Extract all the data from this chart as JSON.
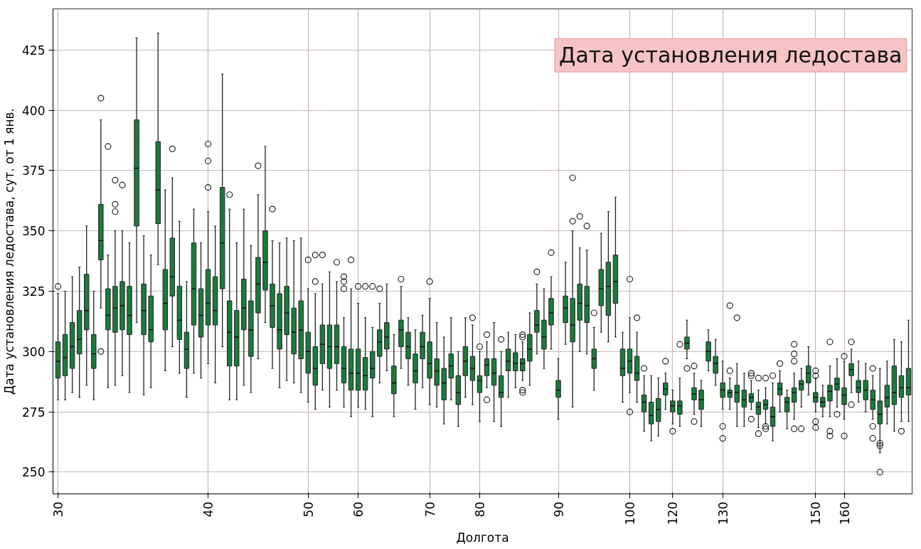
{
  "chart_data": {
    "type": "box",
    "title": "Дата установления ледостава",
    "xlabel": "Долгота",
    "ylabel": "Дата установления ледостава, сут. от 1 янв.",
    "categories": [
      "30",
      null,
      null,
      null,
      null,
      null,
      null,
      null,
      null,
      null,
      null,
      null,
      null,
      null,
      null,
      null,
      null,
      null,
      null,
      null,
      null,
      "40",
      null,
      null,
      null,
      null,
      null,
      null,
      null,
      null,
      null,
      null,
      null,
      null,
      null,
      "50",
      null,
      null,
      null,
      null,
      null,
      null,
      "60",
      null,
      null,
      null,
      null,
      null,
      null,
      null,
      null,
      null,
      "70",
      null,
      null,
      null,
      null,
      null,
      null,
      "80",
      null,
      null,
      null,
      null,
      null,
      null,
      null,
      null,
      null,
      null,
      "90",
      null,
      null,
      null,
      null,
      null,
      null,
      null,
      null,
      null,
      "100",
      null,
      null,
      null,
      null,
      null,
      "120",
      null,
      null,
      null,
      null,
      null,
      null,
      "130",
      null,
      null,
      null,
      null,
      null,
      null,
      null,
      null,
      null,
      null,
      null,
      null,
      "150",
      null,
      null,
      null,
      "160",
      null,
      null,
      null,
      null,
      null,
      null,
      null,
      null,
      null
    ],
    "color": "#1b7b3c",
    "ylim": [
      241,
      442
    ],
    "yticks": [
      250,
      275,
      300,
      325,
      350,
      375,
      400,
      425
    ],
    "grid": true,
    "boxes": [
      {
        "low": 280,
        "q1": 289,
        "median": 296,
        "q3": 304,
        "high": 324,
        "outliers": [
          327
        ]
      },
      {
        "low": 280,
        "q1": 290,
        "median": 297.5,
        "q3": 307,
        "high": 325
      },
      {
        "low": 283,
        "q1": 293,
        "median": 302,
        "q3": 312,
        "high": 331
      },
      {
        "low": 281,
        "q1": 299,
        "median": 305,
        "q3": 317,
        "high": 335
      },
      {
        "low": 286,
        "q1": 309,
        "median": 317,
        "q3": 332,
        "high": 352
      },
      {
        "low": 280,
        "q1": 293,
        "median": 299,
        "q3": 307,
        "high": 325
      },
      {
        "low": 318,
        "q1": 338,
        "median": 346,
        "q3": 361,
        "high": 396,
        "outliers": [
          405,
          300
        ]
      },
      {
        "low": 285,
        "q1": 309,
        "median": 315,
        "q3": 326,
        "high": 340,
        "outliers": [
          385
        ]
      },
      {
        "low": 286,
        "q1": 308,
        "median": 318,
        "q3": 327,
        "high": 350,
        "outliers": [
          371,
          361,
          358
        ]
      },
      {
        "low": 290,
        "q1": 309,
        "median": 319,
        "q3": 329,
        "high": 350,
        "outliers": [
          369
        ]
      },
      {
        "low": 283,
        "q1": 307,
        "median": 315,
        "q3": 327,
        "high": 345
      },
      {
        "low": 312,
        "q1": 352,
        "median": 376,
        "q3": 396,
        "high": 430
      },
      {
        "low": 282,
        "q1": 307,
        "median": 317,
        "q3": 328,
        "high": 348
      },
      {
        "low": 285,
        "q1": 304,
        "median": 309,
        "q3": 323,
        "high": 340
      },
      {
        "low": 336,
        "q1": 353,
        "median": 367,
        "q3": 387,
        "high": 432
      },
      {
        "low": 292,
        "q1": 309,
        "median": 320,
        "q3": 334,
        "high": 367
      },
      {
        "low": 302,
        "q1": 323,
        "median": 331,
        "q3": 347,
        "high": 372,
        "outliers": [
          384
        ]
      },
      {
        "low": 291,
        "q1": 305,
        "median": 313,
        "q3": 327,
        "high": 354
      },
      {
        "low": 281,
        "q1": 293,
        "median": 301,
        "q3": 308,
        "high": 329
      },
      {
        "low": 291,
        "q1": 311,
        "median": 326,
        "q3": 345,
        "high": 359
      },
      {
        "low": 289,
        "q1": 306,
        "median": 315,
        "q3": 326,
        "high": 345
      },
      {
        "low": 295,
        "q1": 311,
        "median": 320,
        "q3": 334,
        "high": 358,
        "outliers": [
          386,
          379,
          368
        ]
      },
      {
        "low": 287,
        "q1": 311,
        "median": 317,
        "q3": 331,
        "high": 352
      },
      {
        "low": 302,
        "q1": 326,
        "median": 345,
        "q3": 368,
        "high": 415
      },
      {
        "low": 280,
        "q1": 294,
        "median": 308,
        "q3": 321,
        "high": 359,
        "outliers": [
          365
        ]
      },
      {
        "low": 280,
        "q1": 294,
        "median": 306,
        "q3": 317,
        "high": 345
      },
      {
        "low": 286,
        "q1": 309,
        "median": 318,
        "q3": 330,
        "high": 359
      },
      {
        "low": 283,
        "q1": 298,
        "median": 309,
        "q3": 321,
        "high": 344
      },
      {
        "low": 297,
        "q1": 316,
        "median": 328,
        "q3": 339,
        "high": 365,
        "outliers": [
          377
        ]
      },
      {
        "low": 312,
        "q1": 325.5,
        "median": 337,
        "q3": 350,
        "high": 385
      },
      {
        "low": 293,
        "q1": 310,
        "median": 319,
        "q3": 328,
        "high": 346,
        "outliers": [
          359
        ]
      },
      {
        "low": 285,
        "q1": 301,
        "median": 309,
        "q3": 324,
        "high": 345
      },
      {
        "low": 288,
        "q1": 307,
        "median": 316,
        "q3": 327,
        "high": 347
      },
      {
        "low": 287,
        "q1": 299,
        "median": 308,
        "q3": 318,
        "high": 346
      },
      {
        "low": 283,
        "q1": 297,
        "median": 309,
        "q3": 321,
        "high": 347
      },
      {
        "low": 279,
        "q1": 291,
        "median": 300,
        "q3": 308,
        "high": 326,
        "outliers": [
          338
        ]
      },
      {
        "low": 276,
        "q1": 286,
        "median": 293,
        "q3": 302,
        "high": 324,
        "outliers": [
          340,
          329
        ]
      },
      {
        "low": 284,
        "q1": 295,
        "median": 303,
        "q3": 311,
        "high": 328,
        "outliers": [
          340
        ]
      },
      {
        "low": 277,
        "q1": 293,
        "median": 302,
        "q3": 311,
        "high": 333
      },
      {
        "low": 284,
        "q1": 295,
        "median": 302,
        "q3": 311,
        "high": 329,
        "outliers": [
          337
        ]
      },
      {
        "low": 277,
        "q1": 287,
        "median": 293,
        "q3": 302,
        "high": 314,
        "outliers": [
          331,
          329,
          326
        ]
      },
      {
        "low": 273,
        "q1": 284,
        "median": 291,
        "q3": 301,
        "high": 326,
        "outliers": [
          338
        ]
      },
      {
        "low": 277,
        "q1": 284,
        "median": 291,
        "q3": 301,
        "high": 320,
        "outliers": [
          327
        ]
      },
      {
        "low": 276,
        "q1": 284,
        "median": 290,
        "q3": 297.5,
        "high": 314,
        "outliers": [
          327
        ]
      },
      {
        "low": 273,
        "q1": 289,
        "median": 293,
        "q3": 300,
        "high": 310,
        "outliers": [
          327
        ]
      },
      {
        "low": 287,
        "q1": 298,
        "median": 304,
        "q3": 309,
        "high": 320,
        "outliers": [
          326
        ]
      },
      {
        "low": 292,
        "q1": 301,
        "median": 306,
        "q3": 312,
        "high": 328
      },
      {
        "low": 273,
        "q1": 282.5,
        "median": 287,
        "q3": 294,
        "high": 307
      },
      {
        "low": 293,
        "q1": 302,
        "median": 309,
        "q3": 313,
        "high": 327,
        "outliers": [
          330
        ]
      },
      {
        "low": 286,
        "q1": 297,
        "median": 302,
        "q3": 308,
        "high": 314
      },
      {
        "low": 276,
        "q1": 287,
        "median": 292,
        "q3": 299,
        "high": 309
      },
      {
        "low": 285,
        "q1": 297,
        "median": 302,
        "q3": 308,
        "high": 315
      },
      {
        "low": 278,
        "q1": 289,
        "median": 295,
        "q3": 304,
        "high": 322,
        "outliers": [
          329
        ]
      },
      {
        "low": 277,
        "q1": 286,
        "median": 292,
        "q3": 297,
        "high": 312
      },
      {
        "low": 270,
        "q1": 280,
        "median": 287,
        "q3": 293,
        "high": 306
      },
      {
        "low": 280,
        "q1": 289,
        "median": 294,
        "q3": 299,
        "high": 314
      },
      {
        "low": 269,
        "q1": 278,
        "median": 283,
        "q3": 290,
        "high": 300
      },
      {
        "low": 281,
        "q1": 290,
        "median": 296,
        "q3": 302,
        "high": 314
      },
      {
        "low": 278,
        "q1": 288,
        "median": 293,
        "q3": 298,
        "high": 311,
        "outliers": [
          314
        ]
      },
      {
        "low": 271,
        "q1": 283,
        "median": 288,
        "q3": 290,
        "high": 300,
        "outliers": [
          302
        ]
      },
      {
        "low": 285,
        "q1": 290,
        "median": 294.5,
        "q3": 297,
        "high": 304,
        "outliers": [
          307,
          280
        ]
      },
      {
        "low": 271,
        "q1": 286,
        "median": 291,
        "q3": 297,
        "high": 312
      },
      {
        "low": 269,
        "q1": 281,
        "median": 283,
        "q3": 290,
        "high": 300,
        "outliers": [
          305
        ]
      },
      {
        "low": 281,
        "q1": 292,
        "median": 296,
        "q3": 301,
        "high": 308
      },
      {
        "low": 285,
        "q1": 292,
        "median": 295,
        "q3": 299.5,
        "high": 307
      },
      {
        "low": 288,
        "q1": 292,
        "median": 295,
        "q3": 297,
        "high": 304,
        "outliers": [
          307,
          306,
          284,
          283
        ]
      },
      {
        "low": 286,
        "q1": 296,
        "median": 301,
        "q3": 307,
        "high": 316
      },
      {
        "low": 299,
        "q1": 308,
        "median": 311,
        "q3": 317,
        "high": 328,
        "outliers": [
          333
        ]
      },
      {
        "low": 293,
        "q1": 301,
        "median": 306,
        "q3": 313,
        "high": 326
      },
      {
        "low": 301,
        "q1": 311,
        "median": 316,
        "q3": 322,
        "high": 331,
        "outliers": [
          341
        ]
      },
      {
        "low": 272,
        "q1": 281,
        "median": 284,
        "q3": 288,
        "high": 297
      },
      {
        "low": 303,
        "q1": 312,
        "median": 318,
        "q3": 323,
        "high": 337
      },
      {
        "low": 277,
        "q1": 304,
        "median": 311,
        "q3": 322,
        "high": 350,
        "outliers": [
          372,
          354
        ]
      },
      {
        "low": 300,
        "q1": 313,
        "median": 320,
        "q3": 328,
        "high": 343,
        "outliers": [
          356
        ]
      },
      {
        "low": 299,
        "q1": 312,
        "median": 319,
        "q3": 327,
        "high": 342,
        "outliers": [
          352
        ]
      },
      {
        "low": 284,
        "q1": 293,
        "median": 297,
        "q3": 301,
        "high": 310,
        "outliers": [
          316
        ]
      },
      {
        "low": 308,
        "q1": 319,
        "median": 326,
        "q3": 334,
        "high": 349
      },
      {
        "low": 304,
        "q1": 315,
        "median": 327,
        "q3": 337,
        "high": 358
      },
      {
        "low": 306,
        "q1": 320,
        "median": 329,
        "q3": 340,
        "high": 364
      },
      {
        "low": 279,
        "q1": 290,
        "median": 293,
        "q3": 301,
        "high": 308
      },
      {
        "low": 283,
        "q1": 291,
        "median": 296,
        "q3": 301,
        "high": 314,
        "outliers": [
          330,
          275
        ]
      },
      {
        "low": 279,
        "q1": 288,
        "median": 291,
        "q3": 298,
        "high": 308,
        "outliers": [
          314
        ]
      },
      {
        "low": 267,
        "q1": 275,
        "median": 279,
        "q3": 282,
        "high": 290,
        "outliers": [
          293
        ]
      },
      {
        "low": 263,
        "q1": 270,
        "median": 273.5,
        "q3": 279,
        "high": 290
      },
      {
        "low": 265,
        "q1": 271,
        "median": 276,
        "q3": 280.5,
        "high": 289
      },
      {
        "low": 276,
        "q1": 282,
        "median": 284.5,
        "q3": 287,
        "high": 291,
        "outliers": [
          296
        ]
      },
      {
        "low": 270,
        "q1": 275,
        "median": 277.5,
        "q3": 279.5,
        "high": 284,
        "outliers": [
          267
        ]
      },
      {
        "low": 269,
        "q1": 274,
        "median": 277.5,
        "q3": 279.5,
        "high": 289,
        "outliers": [
          303
        ]
      },
      {
        "low": 297,
        "q1": 301,
        "median": 303.5,
        "q3": 306,
        "high": 313,
        "outliers": [
          293
        ]
      },
      {
        "low": 274,
        "q1": 280,
        "median": 282.5,
        "q3": 285,
        "high": 291,
        "outliers": [
          294,
          271
        ]
      },
      {
        "low": 269,
        "q1": 276,
        "median": 280,
        "q3": 284,
        "high": 288
      },
      {
        "low": 292,
        "q1": 296,
        "median": 300,
        "q3": 304,
        "high": 309
      },
      {
        "low": 286,
        "q1": 291,
        "median": 295,
        "q3": 298,
        "high": 305
      },
      {
        "low": 276,
        "q1": 281,
        "median": 284,
        "q3": 287,
        "high": 296,
        "outliers": [
          269,
          264
        ]
      },
      {
        "low": 276,
        "q1": 281,
        "median": 283,
        "q3": 284,
        "high": 289,
        "outliers": [
          319,
          292
        ]
      },
      {
        "low": 269,
        "q1": 279,
        "median": 283,
        "q3": 286,
        "high": 295,
        "outliers": [
          314
        ]
      },
      {
        "low": 269,
        "q1": 277,
        "median": 280,
        "q3": 284,
        "high": 291
      },
      {
        "low": 276,
        "q1": 279,
        "median": 281,
        "q3": 282.5,
        "high": 288,
        "outliers": [
          291,
          290,
          272
        ]
      },
      {
        "low": 268.5,
        "q1": 274,
        "median": 277,
        "q3": 279,
        "high": 284,
        "outliers": [
          289,
          266
        ]
      },
      {
        "low": 270,
        "q1": 276,
        "median": 278,
        "q3": 280,
        "high": 285,
        "outliers": [
          289,
          269,
          268
        ]
      },
      {
        "low": 263,
        "q1": 269,
        "median": 273,
        "q3": 277,
        "high": 287,
        "outliers": [
          290
        ]
      },
      {
        "low": 275,
        "q1": 282,
        "median": 284.5,
        "q3": 287,
        "high": 292,
        "outliers": [
          295
        ]
      },
      {
        "low": 268,
        "q1": 275,
        "median": 279,
        "q3": 281,
        "high": 284
      },
      {
        "low": 272,
        "q1": 279,
        "median": 283,
        "q3": 285,
        "high": 291,
        "outliers": [
          303,
          299,
          296,
          268
        ]
      },
      {
        "low": 277,
        "q1": 284,
        "median": 286.5,
        "q3": 288,
        "high": 293,
        "outliers": [
          268
        ]
      },
      {
        "low": 282,
        "q1": 287,
        "median": 291,
        "q3": 294,
        "high": 302
      },
      {
        "low": 275,
        "q1": 279,
        "median": 281,
        "q3": 283,
        "high": 289,
        "outliers": [
          292,
          290,
          271,
          268.5
        ]
      },
      {
        "low": 273,
        "q1": 277,
        "median": 279,
        "q3": 281,
        "high": 286
      },
      {
        "low": 273,
        "q1": 279.5,
        "median": 283.5,
        "q3": 286,
        "high": 294,
        "outliers": [
          304,
          267,
          265
        ]
      },
      {
        "low": 277,
        "q1": 284,
        "median": 286.5,
        "q3": 289,
        "high": 297,
        "outliers": [
          274
        ]
      },
      {
        "low": 272,
        "q1": 278,
        "median": 282,
        "q3": 285,
        "high": 296,
        "outliers": [
          298,
          265
        ]
      },
      {
        "low": 283,
        "q1": 290,
        "median": 292.5,
        "q3": 295,
        "high": 301,
        "outliers": [
          304,
          278
        ]
      },
      {
        "low": 279,
        "q1": 283,
        "median": 285,
        "q3": 288,
        "high": 296
      },
      {
        "low": 275,
        "q1": 280,
        "median": 284,
        "q3": 288,
        "high": 295
      },
      {
        "low": 272,
        "q1": 276,
        "median": 280,
        "q3": 284,
        "high": 290,
        "outliers": [
          293,
          269,
          264
        ]
      },
      {
        "low": 258,
        "q1": 270,
        "median": 274,
        "q3": 279.5,
        "high": 293,
        "outliers": [
          262,
          261,
          250
        ]
      },
      {
        "low": 270,
        "q1": 277,
        "median": 281,
        "q3": 286,
        "high": 296
      },
      {
        "low": 267,
        "q1": 278,
        "median": 283,
        "q3": 294,
        "high": 305
      },
      {
        "low": 271,
        "q1": 281,
        "median": 285,
        "q3": 290,
        "high": 304,
        "outliers": [
          267
        ]
      },
      {
        "low": 271,
        "q1": 282,
        "median": 285,
        "q3": 293,
        "high": 313
      }
    ]
  }
}
